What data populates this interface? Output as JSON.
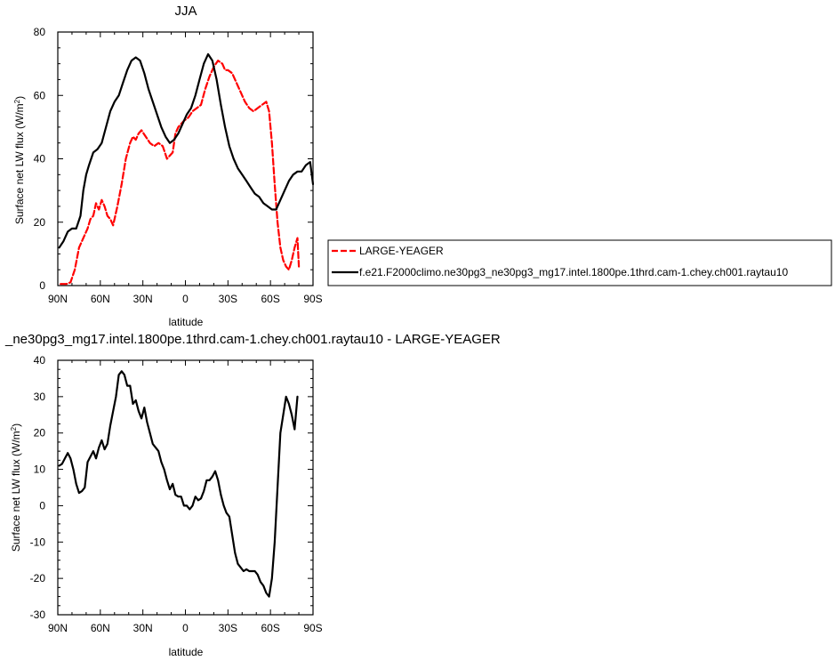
{
  "colors": {
    "obs": "#ff0000",
    "model": "#000000",
    "diff": "#000000"
  },
  "chart_data": [
    {
      "type": "line",
      "title": "JJA",
      "xlabel": "latitude",
      "ylabel": "Surface net LW flux (W/m²)",
      "ylabel_main": "Surface net LW flux (W/m",
      "ylabel_sup": "2",
      "ylabel_tail": ")",
      "xlim": [
        90,
        -90
      ],
      "ylim": [
        0,
        80
      ],
      "x_ticks": [
        90,
        60,
        30,
        0,
        -30,
        -60,
        -90
      ],
      "x_tick_labels": [
        "90N",
        "60N",
        "30N",
        "0",
        "30S",
        "60S",
        "90S"
      ],
      "y_ticks": [
        0,
        20,
        40,
        60,
        80
      ],
      "y_tick_labels": [
        "0",
        "20",
        "40",
        "60",
        "80"
      ],
      "legend_position": "right",
      "series": [
        {
          "name": "LARGE-YEAGER",
          "color": "#ff0000",
          "dash": "dashed",
          "x": [
            88,
            84,
            81,
            78,
            75,
            72,
            69,
            67,
            65,
            63,
            61,
            59,
            57,
            55,
            53,
            51,
            48,
            45,
            42,
            39,
            37,
            35,
            33,
            31,
            28,
            25,
            22,
            19,
            16,
            13,
            11,
            9,
            7,
            5,
            3,
            1,
            -2,
            -5,
            -8,
            -11,
            -14,
            -17,
            -20,
            -23,
            -26,
            -28,
            -30,
            -33,
            -36,
            -39,
            -42,
            -45,
            -48,
            -51,
            -54,
            -57,
            -59,
            -61,
            -63,
            -65,
            -67,
            -69,
            -71,
            -73,
            -75,
            -77,
            -79,
            -80
          ],
          "y": [
            0.5,
            0.5,
            1.0,
            5,
            12,
            15,
            18,
            21,
            22,
            26,
            24,
            27,
            25,
            22,
            21,
            19,
            25,
            32,
            40,
            45,
            47,
            46,
            48,
            49,
            47,
            45,
            44,
            45,
            44,
            40,
            41,
            42,
            48,
            50,
            51,
            52,
            53,
            55,
            56,
            57,
            62,
            66,
            69,
            71,
            70,
            68,
            68,
            67,
            64,
            61,
            58,
            56,
            55,
            56,
            57,
            58,
            55,
            45,
            32,
            20,
            12,
            8,
            6,
            5,
            8,
            12,
            15,
            6
          ]
        },
        {
          "name": "f.e21.F2000climo.ne30pg3_ne30pg3_mg17.intel.1800pe.1thrd.cam-1.chey.ch001.raytau10",
          "color": "#000000",
          "dash": "solid",
          "x": [
            89,
            86,
            83,
            80,
            77,
            74,
            72,
            70,
            68,
            65,
            62,
            59,
            56,
            53,
            50,
            47,
            44,
            41,
            38,
            35,
            32,
            29,
            26,
            23,
            20,
            17,
            14,
            11,
            8,
            5,
            2,
            -1,
            -4,
            -7,
            -10,
            -13,
            -16,
            -19,
            -22,
            -25,
            -28,
            -31,
            -34,
            -37,
            -40,
            -43,
            -46,
            -49,
            -52,
            -55,
            -58,
            -61,
            -64,
            -67,
            -70,
            -73,
            -76,
            -79,
            -82,
            -85,
            -88,
            -90
          ],
          "y": [
            12,
            14,
            17,
            18,
            18,
            22,
            30,
            35,
            38,
            42,
            43,
            45,
            50,
            55,
            58,
            60,
            64,
            68,
            71,
            72,
            71,
            67,
            62,
            58,
            54,
            50,
            47,
            45,
            46,
            48,
            51,
            54,
            56,
            60,
            65,
            70,
            73,
            71,
            65,
            57,
            50,
            44,
            40,
            37,
            35,
            33,
            31,
            29,
            28,
            26,
            25,
            24,
            24,
            27,
            30,
            33,
            35,
            36,
            36,
            38,
            39,
            32
          ]
        }
      ]
    },
    {
      "type": "line",
      "title": "_ne30pg3_mg17.intel.1800pe.1thrd.cam-1.chey.ch001.raytau10 - LARGE-YEAGER",
      "xlabel": "latitude",
      "ylabel": "Surface net LW flux (W/m²)",
      "ylabel_main": "Surface net LW flux (W/m",
      "ylabel_sup": "2",
      "ylabel_tail": ")",
      "xlim": [
        90,
        -90
      ],
      "ylim": [
        -30,
        40
      ],
      "x_ticks": [
        90,
        60,
        30,
        0,
        -30,
        -60,
        -90
      ],
      "x_tick_labels": [
        "90N",
        "60N",
        "30N",
        "0",
        "30S",
        "60S",
        "90S"
      ],
      "y_ticks": [
        -30,
        -20,
        -10,
        0,
        10,
        20,
        30,
        40
      ],
      "y_tick_labels": [
        "-30",
        "-20",
        "-10",
        "0",
        "10",
        "20",
        "30",
        "40"
      ],
      "series": [
        {
          "name": "",
          "color": "#000000",
          "dash": "solid",
          "x": [
            89,
            87,
            85,
            83,
            81,
            79,
            77,
            75,
            73,
            71,
            69,
            67,
            65,
            63,
            61,
            59,
            57,
            55,
            53,
            51,
            49,
            47,
            45,
            43,
            41,
            39,
            37,
            35,
            33,
            31,
            29,
            27,
            25,
            23,
            21,
            19,
            17,
            15,
            13,
            11,
            9,
            7,
            5,
            3,
            1,
            -1,
            -3,
            -5,
            -7,
            -9,
            -11,
            -13,
            -15,
            -17,
            -19,
            -21,
            -23,
            -25,
            -27,
            -29,
            -31,
            -33,
            -35,
            -37,
            -39,
            -41,
            -43,
            -45,
            -47,
            -49,
            -51,
            -53,
            -55,
            -57,
            -59,
            -61,
            -63,
            -65,
            -67,
            -69,
            -71,
            -73,
            -75,
            -77,
            -79
          ],
          "y": [
            11,
            11.5,
            13,
            14.5,
            13,
            10,
            6,
            3.5,
            4,
            5,
            12,
            13.5,
            15,
            13,
            16,
            18,
            15.5,
            17,
            22,
            26,
            30,
            36,
            37,
            36,
            33,
            33,
            28,
            29,
            26,
            24,
            27,
            23,
            20,
            17,
            16,
            15,
            12,
            10,
            7,
            4.5,
            6,
            3,
            2.5,
            2.5,
            0,
            0,
            -1,
            0,
            2.5,
            1.5,
            2,
            4,
            7,
            7,
            8,
            9.5,
            7,
            3,
            0,
            -2,
            -3,
            -8,
            -13,
            -16,
            -17,
            -18,
            -17.5,
            -18,
            -18,
            -18,
            -19,
            -21,
            -22,
            -24,
            -25,
            -20,
            -10,
            5,
            20,
            25,
            30,
            28,
            25,
            21,
            30
          ]
        }
      ]
    }
  ]
}
